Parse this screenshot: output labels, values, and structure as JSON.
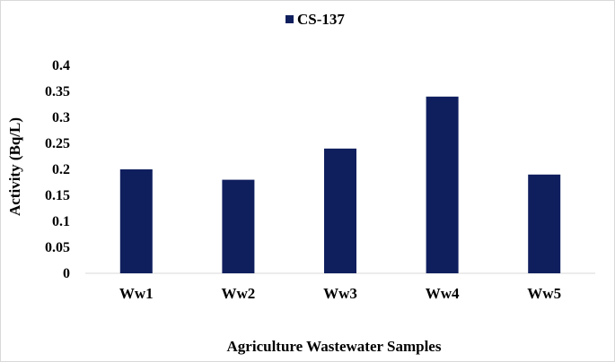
{
  "chart_data": {
    "type": "bar",
    "categories": [
      "Ww1",
      "Ww2",
      "Ww3",
      "Ww4",
      "Ww5"
    ],
    "series": [
      {
        "name": "CS-137",
        "values": [
          0.2,
          0.18,
          0.24,
          0.34,
          0.19
        ]
      }
    ],
    "xlabel": "Agriculture Wastewater Samples",
    "ylabel": "Activity (Bq/L)",
    "ylim": [
      0,
      0.4
    ],
    "yticks": [
      "0",
      "0.05",
      "0.1",
      "0.15",
      "0.2",
      "0.25",
      "0.3",
      "0.35",
      "0.4"
    ],
    "grid": false,
    "legend_position": "top-center",
    "colors": {
      "bar": "#0f1f5e",
      "axis": "#d9d9d9"
    }
  }
}
